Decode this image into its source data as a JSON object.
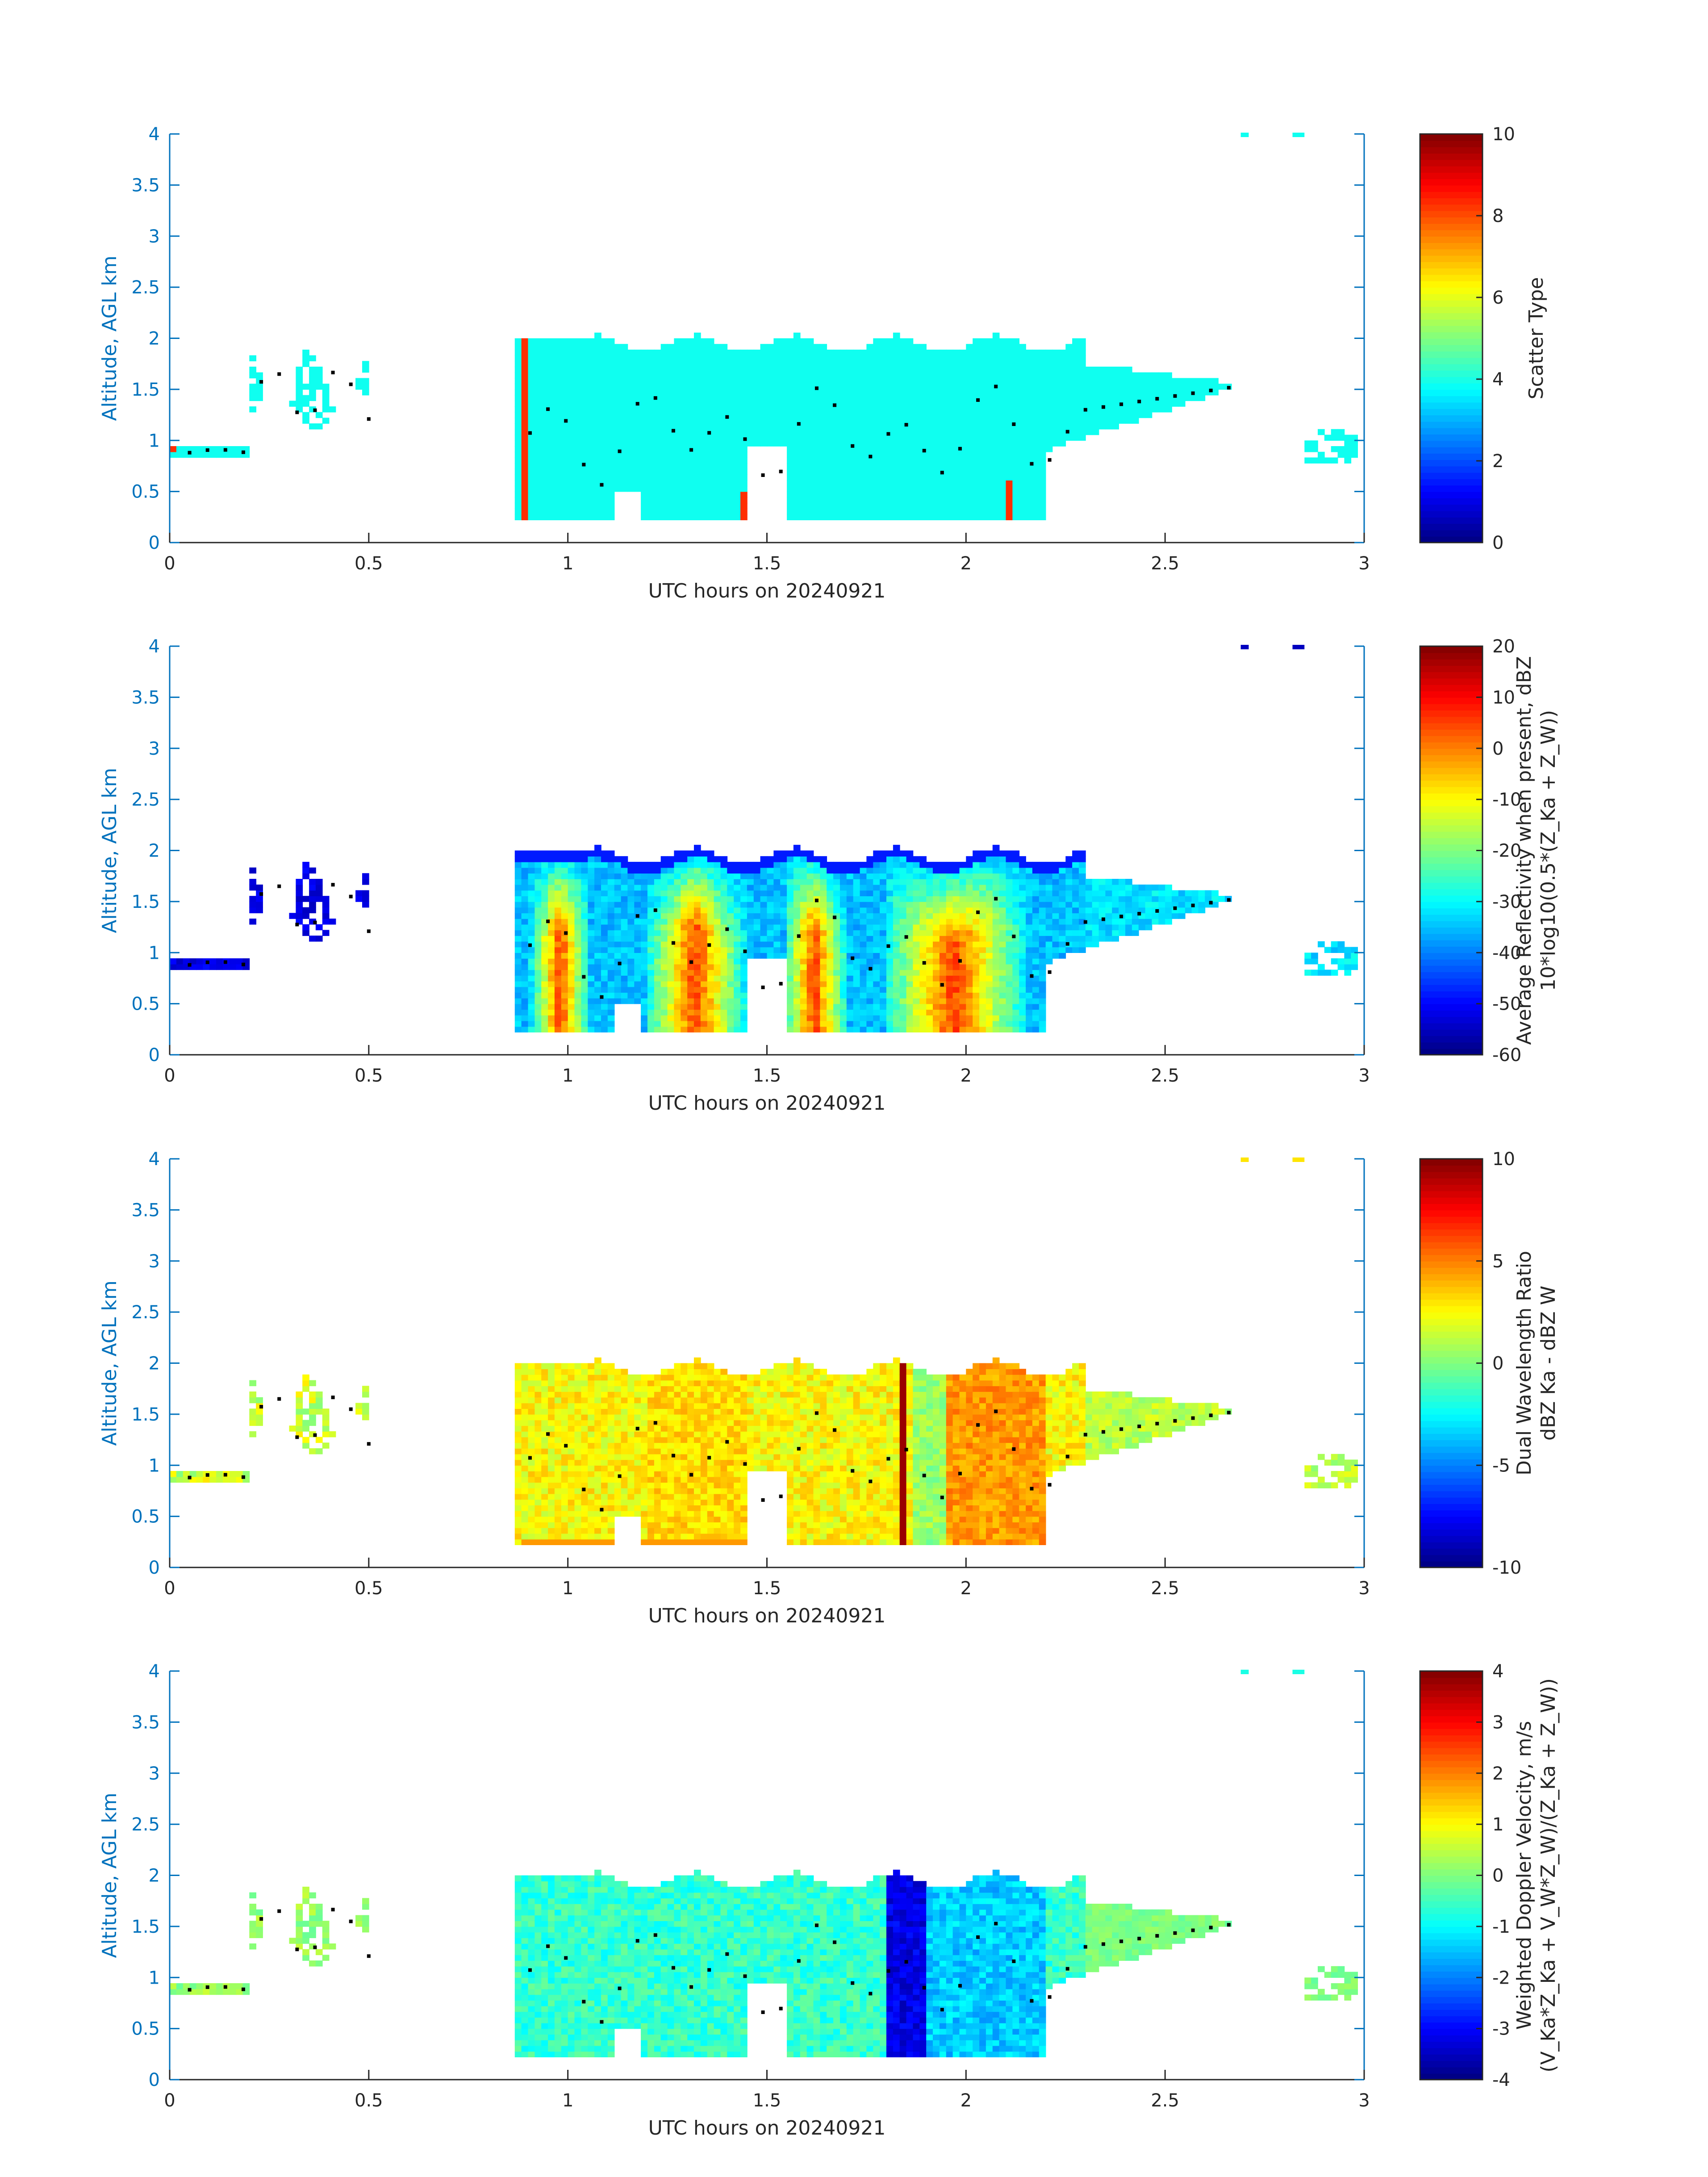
{
  "figure": {
    "colormap": "jet",
    "axis_color": "#0072bd",
    "text_color": "#262626"
  },
  "chart_data": [
    {
      "type": "heatmap",
      "xlabel": "UTC hours on 20240921",
      "ylabel": "Altitude, AGL km",
      "xlim": [
        0,
        3
      ],
      "ylim": [
        0,
        4
      ],
      "xticks": [
        "0",
        "0.5",
        "1",
        "1.5",
        "2",
        "2.5",
        "3"
      ],
      "yticks": [
        "0",
        "0.5",
        "1",
        "1.5",
        "2",
        "2.5",
        "3",
        "3.5",
        "4"
      ],
      "colorbar": {
        "label_lines": [
          "Scatter Type"
        ],
        "range": [
          0,
          10
        ],
        "ticks": [
          "0",
          "2",
          "4",
          "6",
          "8",
          "10"
        ]
      },
      "field": "scatter",
      "overlay": "black dotted trace"
    },
    {
      "type": "heatmap",
      "xlabel": "UTC hours on 20240921",
      "ylabel": "Altitude, AGL km",
      "xlim": [
        0,
        3
      ],
      "ylim": [
        0,
        4
      ],
      "xticks": [
        "0",
        "0.5",
        "1",
        "1.5",
        "2",
        "2.5",
        "3"
      ],
      "yticks": [
        "0",
        "0.5",
        "1",
        "1.5",
        "2",
        "2.5",
        "3",
        "3.5",
        "4"
      ],
      "colorbar": {
        "label_lines": [
          "Average Reflectivity when present, dBZ",
          "10*log10(0.5*(Z_Ka + Z_W))"
        ],
        "range": [
          -60,
          20
        ],
        "ticks": [
          "-60",
          "-50",
          "-40",
          "-30",
          "-20",
          "-10",
          "0",
          "10",
          "20"
        ]
      },
      "field": "reflectivity",
      "overlay": "black dotted trace"
    },
    {
      "type": "heatmap",
      "xlabel": "UTC hours on 20240921",
      "ylabel": "Altitude, AGL km",
      "xlim": [
        0,
        3
      ],
      "ylim": [
        0,
        4
      ],
      "xticks": [
        "0",
        "0.5",
        "1",
        "1.5",
        "2",
        "2.5",
        "3"
      ],
      "yticks": [
        "0",
        "0.5",
        "1",
        "1.5",
        "2",
        "2.5",
        "3",
        "3.5",
        "4"
      ],
      "colorbar": {
        "label_lines": [
          "Dual Wavelength Ratio",
          "dBZ Ka - dBZ W"
        ],
        "range": [
          -10,
          10
        ],
        "ticks": [
          "-10",
          "-5",
          "0",
          "5",
          "10"
        ]
      },
      "field": "dwr",
      "overlay": "black dotted trace"
    },
    {
      "type": "heatmap",
      "xlabel": "UTC hours on 20240921",
      "ylabel": "Altitude, AGL km",
      "xlim": [
        0,
        3
      ],
      "ylim": [
        0,
        4
      ],
      "xticks": [
        "0",
        "0.5",
        "1",
        "1.5",
        "2",
        "2.5",
        "3"
      ],
      "yticks": [
        "0",
        "0.5",
        "1",
        "1.5",
        "2",
        "2.5",
        "3",
        "3.5",
        "4"
      ],
      "colorbar": {
        "label_lines": [
          "Weighted Doppler Velocity, m/s",
          "(V_Ka*Z_Ka + V_W*Z_W)/(Z_Ka + Z_W))"
        ],
        "range": [
          -4,
          4
        ],
        "ticks": [
          "-4",
          "-3",
          "-2",
          "-1",
          "0",
          "1",
          "2",
          "3",
          "4"
        ]
      },
      "field": "velocity",
      "overlay": "black dotted trace"
    }
  ]
}
